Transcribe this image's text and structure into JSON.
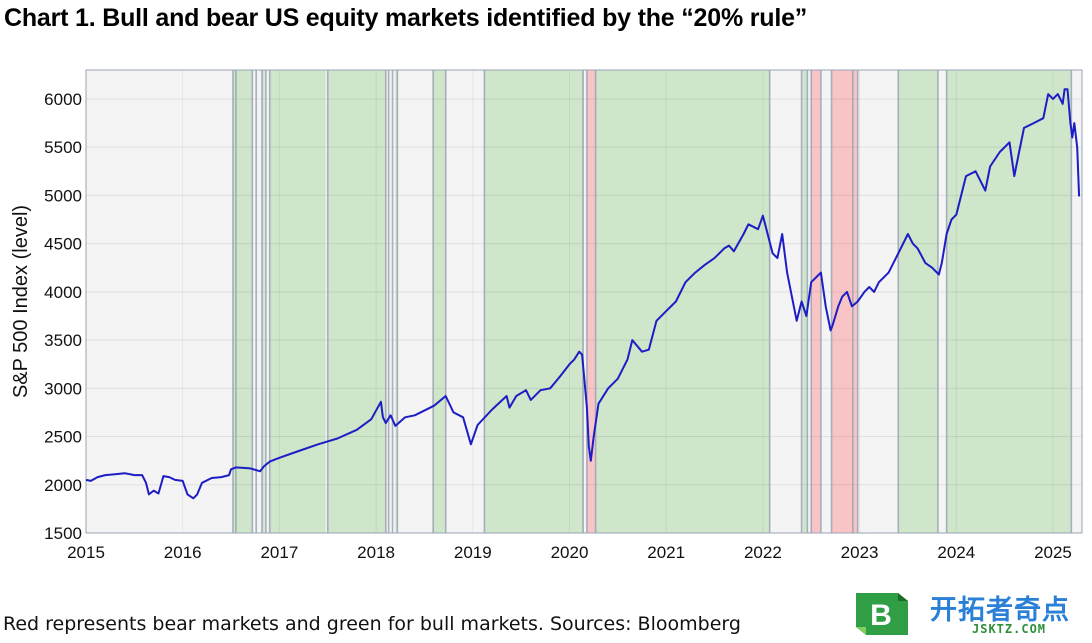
{
  "title": "Chart 1. Bull and bear US equity markets identified by the “20% rule”",
  "caption": "Red represents bear markets and green for bull markets. Sources: Bloomberg",
  "logo": {
    "cn": "开拓者奇点",
    "en": "JSKTZ.COM",
    "badge_letter": "B"
  },
  "colors": {
    "line": "#1d1dc6",
    "bull": "#cfe6ca",
    "bear": "#f9c4c6",
    "neutral": "#f4f4f4",
    "edge": "#9aa3b5",
    "grid": "#e2e2e2"
  },
  "chart_data": {
    "type": "line",
    "title": "Chart 1. Bull and bear US equity markets identified by the “20% rule”",
    "xlabel": "",
    "ylabel": "S&P 500 Index (level)",
    "xlim": [
      2015.0,
      2025.3
    ],
    "ylim": [
      1500,
      6300
    ],
    "x_ticks": [
      "2015",
      "2016",
      "2017",
      "2018",
      "2019",
      "2020",
      "2021",
      "2022",
      "2023",
      "2024",
      "2025"
    ],
    "y_ticks": [
      1500,
      2000,
      2500,
      3000,
      3500,
      4000,
      4500,
      5000,
      5500,
      6000
    ],
    "grid": true,
    "regimes": [
      {
        "type": "neutral",
        "start": 2015.0,
        "end": 2016.52
      },
      {
        "type": "bull",
        "start": 2016.52,
        "end": 2016.72
      },
      {
        "type": "neutral",
        "start": 2016.72,
        "end": 2016.82
      },
      {
        "type": "bull",
        "start": 2016.82,
        "end": 2016.85
      },
      {
        "type": "neutral",
        "start": 2016.85,
        "end": 2016.9
      },
      {
        "type": "bull",
        "start": 2016.9,
        "end": 2017.48
      },
      {
        "type": "neutral",
        "start": 2017.48,
        "end": 2017.5
      },
      {
        "type": "bull",
        "start": 2017.5,
        "end": 2018.1
      },
      {
        "type": "neutral",
        "start": 2018.1,
        "end": 2018.2
      },
      {
        "type": "bull",
        "start": 2018.2,
        "end": 2018.22
      },
      {
        "type": "neutral",
        "start": 2018.22,
        "end": 2018.59
      },
      {
        "type": "bull",
        "start": 2018.59,
        "end": 2018.72
      },
      {
        "type": "neutral",
        "start": 2018.72,
        "end": 2019.12
      },
      {
        "type": "bull",
        "start": 2019.12,
        "end": 2020.15
      },
      {
        "type": "neutral",
        "start": 2020.15,
        "end": 2020.18
      },
      {
        "type": "bear",
        "start": 2020.18,
        "end": 2020.27
      },
      {
        "type": "bull",
        "start": 2020.27,
        "end": 2022.07
      },
      {
        "type": "neutral",
        "start": 2022.07,
        "end": 2022.41
      },
      {
        "type": "bull",
        "start": 2022.41,
        "end": 2022.46
      },
      {
        "type": "neutral",
        "start": 2022.46,
        "end": 2022.5
      },
      {
        "type": "bear",
        "start": 2022.5,
        "end": 2022.6
      },
      {
        "type": "neutral",
        "start": 2022.6,
        "end": 2022.71
      },
      {
        "type": "bear",
        "start": 2022.71,
        "end": 2022.98
      },
      {
        "type": "neutral",
        "start": 2022.98,
        "end": 2023.05
      },
      {
        "type": "neutral",
        "start": 2023.05,
        "end": 2023.4
      },
      {
        "type": "bull",
        "start": 2023.4,
        "end": 2023.81
      },
      {
        "type": "neutral",
        "start": 2023.81,
        "end": 2023.9
      },
      {
        "type": "bull",
        "start": 2023.9,
        "end": 2025.19
      },
      {
        "type": "neutral",
        "start": 2025.19,
        "end": 2025.3
      }
    ],
    "boundary_lines": [
      2016.52,
      2016.55,
      2016.72,
      2016.76,
      2016.82,
      2016.86,
      2016.9,
      2017.5,
      2018.1,
      2018.13,
      2018.17,
      2018.22,
      2018.59,
      2018.72,
      2019.12,
      2020.14,
      2020.18,
      2020.27,
      2022.07,
      2022.4,
      2022.46,
      2022.5,
      2022.6,
      2022.71,
      2022.93,
      2022.98,
      2023.4,
      2023.81,
      2023.9,
      2025.19
    ],
    "series": [
      {
        "x": [
          2015.0,
          2015.05,
          2015.12,
          2015.2,
          2015.3,
          2015.4,
          2015.5,
          2015.58,
          2015.62,
          2015.65,
          2015.7,
          2015.75,
          2015.8,
          2015.86,
          2015.92,
          2016.0,
          2016.05,
          2016.11,
          2016.15,
          2016.2,
          2016.3,
          2016.4,
          2016.48,
          2016.5,
          2016.55,
          2016.7,
          2016.8,
          2016.84,
          2016.9,
          2017.0,
          2017.2,
          2017.4,
          2017.6,
          2017.8,
          2017.95,
          2018.05,
          2018.07,
          2018.1,
          2018.15,
          2018.2,
          2018.3,
          2018.4,
          2018.6,
          2018.72,
          2018.8,
          2018.9,
          2018.98,
          2019.05,
          2019.2,
          2019.35,
          2019.38,
          2019.45,
          2019.55,
          2019.6,
          2019.7,
          2019.8,
          2019.9,
          2020.0,
          2020.05,
          2020.1,
          2020.13,
          2020.18,
          2020.2,
          2020.22,
          2020.25,
          2020.3,
          2020.4,
          2020.5,
          2020.6,
          2020.65,
          2020.75,
          2020.82,
          2020.9,
          2021.0,
          2021.1,
          2021.2,
          2021.3,
          2021.4,
          2021.5,
          2021.6,
          2021.65,
          2021.7,
          2021.8,
          2021.85,
          2021.95,
          2022.0,
          2022.1,
          2022.15,
          2022.2,
          2022.25,
          2022.3,
          2022.35,
          2022.4,
          2022.45,
          2022.5,
          2022.55,
          2022.6,
          2022.65,
          2022.7,
          2022.72,
          2022.78,
          2022.82,
          2022.87,
          2022.92,
          2022.98,
          2023.05,
          2023.1,
          2023.15,
          2023.2,
          2023.3,
          2023.4,
          2023.5,
          2023.55,
          2023.6,
          2023.68,
          2023.75,
          2023.82,
          2023.85,
          2023.9,
          2023.95,
          2024.0,
          2024.1,
          2024.2,
          2024.3,
          2024.35,
          2024.45,
          2024.55,
          2024.6,
          2024.65,
          2024.7,
          2024.8,
          2024.9,
          2024.95,
          2025.0,
          2025.05,
          2025.1,
          2025.12,
          2025.15,
          2025.18,
          2025.2,
          2025.22,
          2025.25,
          2025.27
        ],
        "y": [
          2050,
          2040,
          2080,
          2100,
          2110,
          2120,
          2100,
          2100,
          2020,
          1900,
          1940,
          1910,
          2090,
          2080,
          2050,
          2040,
          1900,
          1860,
          1900,
          2020,
          2070,
          2080,
          2100,
          2160,
          2180,
          2170,
          2140,
          2190,
          2240,
          2280,
          2350,
          2420,
          2480,
          2570,
          2680,
          2860,
          2700,
          2640,
          2720,
          2610,
          2700,
          2720,
          2820,
          2920,
          2750,
          2700,
          2420,
          2620,
          2780,
          2920,
          2800,
          2920,
          2980,
          2880,
          2980,
          3000,
          3120,
          3250,
          3300,
          3380,
          3350,
          2800,
          2400,
          2250,
          2500,
          2840,
          3000,
          3100,
          3300,
          3500,
          3380,
          3400,
          3700,
          3800,
          3900,
          4100,
          4200,
          4280,
          4350,
          4450,
          4480,
          4420,
          4600,
          4700,
          4650,
          4790,
          4400,
          4350,
          4600,
          4200,
          3950,
          3700,
          3900,
          3750,
          4100,
          4150,
          4200,
          3850,
          3600,
          3650,
          3850,
          3950,
          4000,
          3850,
          3900,
          4000,
          4050,
          4000,
          4100,
          4200,
          4400,
          4600,
          4500,
          4450,
          4300,
          4250,
          4180,
          4300,
          4600,
          4750,
          4800,
          5200,
          5250,
          5050,
          5300,
          5450,
          5550,
          5200,
          5450,
          5700,
          5750,
          5800,
          6050,
          6000,
          6050,
          5950,
          6100,
          6100,
          5750,
          5600,
          5750,
          5500,
          4990
        ],
        "name": ""
      }
    ]
  }
}
